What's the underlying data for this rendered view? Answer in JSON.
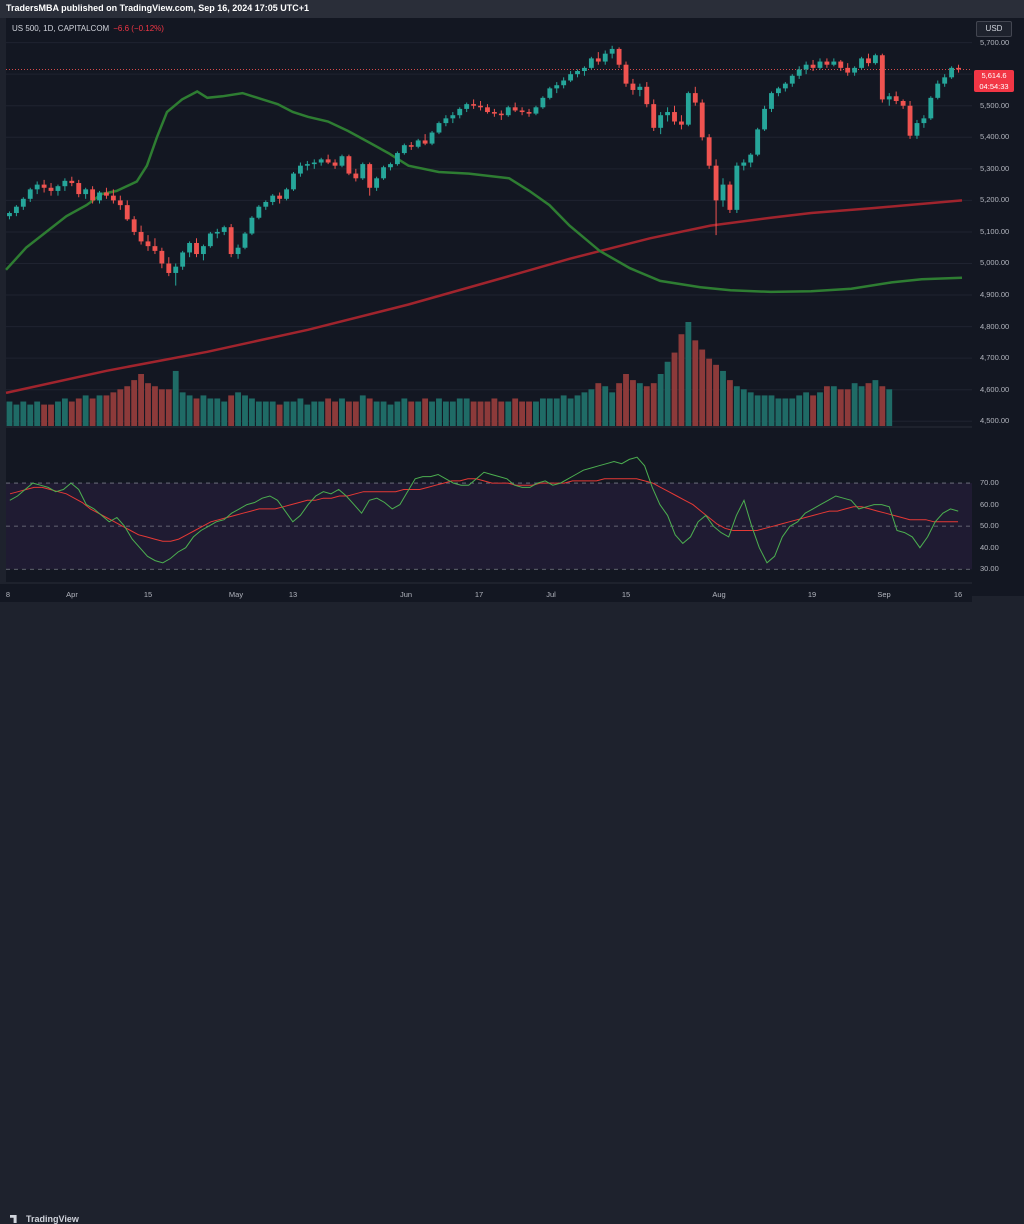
{
  "header": {
    "published": "TradersMBA published on TradingView.com, Sep 16, 2024 17:05 UTC+1"
  },
  "legend": {
    "symbol": "US 500, 1D, CAPITALCOM",
    "change": "−6.6 (−0.12%)"
  },
  "currency": "USD",
  "last_price": {
    "value": "5,614.6",
    "countdown": "04:54:33",
    "color": "#f23645"
  },
  "colors": {
    "up": "#26a69a",
    "down": "#ef5350",
    "volume_up": "#1f6b66",
    "volume_down": "#8c3a3a",
    "ma50": "#2e7d32",
    "ma200": "#a0242d",
    "rsi": "#4caf50",
    "rsi_ma": "#e53935",
    "rsi_band": "#2a1f40"
  },
  "brand": "TradingView",
  "chart_data": {
    "type": "candlestick",
    "price_axis": {
      "ticks": [
        "5,700.00",
        "5,600.00",
        "5,500.00",
        "5,400.00",
        "5,300.00",
        "5,200.00",
        "5,100.00",
        "5,000.00",
        "4,900.00",
        "4,800.00",
        "4,700.00",
        "4,600.00",
        "4,500.00"
      ],
      "range": [
        4485,
        5740
      ]
    },
    "rsi_axis": {
      "ticks": [
        "70.00",
        "60.00",
        "50.00",
        "40.00",
        "30.00"
      ],
      "range": [
        25,
        90
      ],
      "band": [
        30,
        70
      ]
    },
    "time_axis": [
      "8",
      "Apr",
      "15",
      "May",
      "13",
      "Jun",
      "17",
      "Jul",
      "15",
      "Aug",
      "19",
      "Sep",
      "16"
    ],
    "ohlc": [
      [
        5150,
        5165,
        5140,
        5160
      ],
      [
        5160,
        5185,
        5150,
        5180
      ],
      [
        5180,
        5210,
        5170,
        5205
      ],
      [
        5205,
        5240,
        5195,
        5235
      ],
      [
        5235,
        5260,
        5220,
        5250
      ],
      [
        5250,
        5265,
        5225,
        5240
      ],
      [
        5240,
        5255,
        5215,
        5230
      ],
      [
        5230,
        5250,
        5215,
        5245
      ],
      [
        5245,
        5270,
        5230,
        5262
      ],
      [
        5262,
        5275,
        5245,
        5255
      ],
      [
        5255,
        5265,
        5210,
        5220
      ],
      [
        5220,
        5240,
        5205,
        5235
      ],
      [
        5235,
        5245,
        5190,
        5200
      ],
      [
        5200,
        5230,
        5190,
        5225
      ],
      [
        5225,
        5240,
        5205,
        5215
      ],
      [
        5215,
        5235,
        5190,
        5200
      ],
      [
        5200,
        5215,
        5170,
        5185
      ],
      [
        5185,
        5200,
        5135,
        5140
      ],
      [
        5140,
        5150,
        5090,
        5100
      ],
      [
        5100,
        5120,
        5060,
        5070
      ],
      [
        5070,
        5090,
        5040,
        5055
      ],
      [
        5055,
        5080,
        5030,
        5040
      ],
      [
        5040,
        5050,
        4985,
        5000
      ],
      [
        5000,
        5020,
        4960,
        4970
      ],
      [
        4970,
        5000,
        4930,
        4990
      ],
      [
        4990,
        5040,
        4980,
        5035
      ],
      [
        5035,
        5070,
        5020,
        5065
      ],
      [
        5065,
        5080,
        5020,
        5030
      ],
      [
        5030,
        5060,
        5010,
        5055
      ],
      [
        5055,
        5100,
        5050,
        5095
      ],
      [
        5095,
        5110,
        5080,
        5100
      ],
      [
        5100,
        5120,
        5090,
        5115
      ],
      [
        5115,
        5125,
        5020,
        5030
      ],
      [
        5030,
        5060,
        5015,
        5050
      ],
      [
        5050,
        5100,
        5045,
        5095
      ],
      [
        5095,
        5150,
        5090,
        5145
      ],
      [
        5145,
        5185,
        5140,
        5180
      ],
      [
        5180,
        5200,
        5170,
        5195
      ],
      [
        5195,
        5220,
        5185,
        5215
      ],
      [
        5215,
        5225,
        5190,
        5205
      ],
      [
        5205,
        5240,
        5200,
        5235
      ],
      [
        5235,
        5290,
        5230,
        5285
      ],
      [
        5285,
        5320,
        5275,
        5310
      ],
      [
        5310,
        5325,
        5295,
        5315
      ],
      [
        5315,
        5330,
        5300,
        5320
      ],
      [
        5320,
        5335,
        5310,
        5330
      ],
      [
        5330,
        5345,
        5315,
        5320
      ],
      [
        5320,
        5330,
        5300,
        5310
      ],
      [
        5310,
        5345,
        5305,
        5340
      ],
      [
        5340,
        5345,
        5280,
        5285
      ],
      [
        5285,
        5300,
        5260,
        5270
      ],
      [
        5270,
        5320,
        5265,
        5315
      ],
      [
        5315,
        5320,
        5215,
        5240
      ],
      [
        5240,
        5275,
        5230,
        5270
      ],
      [
        5270,
        5310,
        5265,
        5305
      ],
      [
        5305,
        5320,
        5295,
        5315
      ],
      [
        5315,
        5355,
        5310,
        5350
      ],
      [
        5350,
        5380,
        5345,
        5375
      ],
      [
        5375,
        5385,
        5360,
        5370
      ],
      [
        5370,
        5395,
        5365,
        5390
      ],
      [
        5390,
        5410,
        5375,
        5380
      ],
      [
        5380,
        5420,
        5375,
        5415
      ],
      [
        5415,
        5450,
        5410,
        5445
      ],
      [
        5445,
        5470,
        5435,
        5460
      ],
      [
        5460,
        5480,
        5445,
        5470
      ],
      [
        5470,
        5495,
        5460,
        5490
      ],
      [
        5490,
        5510,
        5480,
        5505
      ],
      [
        5505,
        5520,
        5490,
        5500
      ],
      [
        5500,
        5515,
        5485,
        5495
      ],
      [
        5495,
        5505,
        5475,
        5480
      ],
      [
        5480,
        5490,
        5465,
        5475
      ],
      [
        5475,
        5485,
        5455,
        5470
      ],
      [
        5470,
        5500,
        5465,
        5495
      ],
      [
        5495,
        5510,
        5480,
        5485
      ],
      [
        5485,
        5495,
        5470,
        5480
      ],
      [
        5480,
        5490,
        5465,
        5475
      ],
      [
        5475,
        5500,
        5470,
        5495
      ],
      [
        5495,
        5530,
        5490,
        5525
      ],
      [
        5525,
        5560,
        5520,
        5555
      ],
      [
        5555,
        5575,
        5540,
        5565
      ],
      [
        5565,
        5590,
        5555,
        5580
      ],
      [
        5580,
        5610,
        5575,
        5600
      ],
      [
        5600,
        5615,
        5590,
        5610
      ],
      [
        5610,
        5625,
        5595,
        5620
      ],
      [
        5620,
        5655,
        5615,
        5650
      ],
      [
        5650,
        5670,
        5630,
        5640
      ],
      [
        5640,
        5675,
        5630,
        5665
      ],
      [
        5665,
        5690,
        5650,
        5680
      ],
      [
        5680,
        5685,
        5620,
        5630
      ],
      [
        5630,
        5640,
        5560,
        5570
      ],
      [
        5570,
        5585,
        5535,
        5550
      ],
      [
        5550,
        5570,
        5530,
        5560
      ],
      [
        5560,
        5575,
        5495,
        5505
      ],
      [
        5505,
        5520,
        5420,
        5430
      ],
      [
        5430,
        5480,
        5410,
        5470
      ],
      [
        5470,
        5495,
        5450,
        5480
      ],
      [
        5480,
        5500,
        5440,
        5450
      ],
      [
        5450,
        5470,
        5425,
        5440
      ],
      [
        5440,
        5545,
        5435,
        5540
      ],
      [
        5540,
        5560,
        5500,
        5510
      ],
      [
        5510,
        5520,
        5390,
        5400
      ],
      [
        5400,
        5410,
        5300,
        5310
      ],
      [
        5310,
        5330,
        5090,
        5200
      ],
      [
        5200,
        5270,
        5180,
        5250
      ],
      [
        5250,
        5260,
        5160,
        5170
      ],
      [
        5170,
        5320,
        5160,
        5310
      ],
      [
        5310,
        5330,
        5295,
        5320
      ],
      [
        5320,
        5350,
        5305,
        5345
      ],
      [
        5345,
        5430,
        5340,
        5425
      ],
      [
        5425,
        5500,
        5420,
        5490
      ],
      [
        5490,
        5545,
        5480,
        5540
      ],
      [
        5540,
        5560,
        5530,
        5555
      ],
      [
        5555,
        5575,
        5545,
        5570
      ],
      [
        5570,
        5600,
        5560,
        5595
      ],
      [
        5595,
        5625,
        5585,
        5615
      ],
      [
        5615,
        5640,
        5600,
        5630
      ],
      [
        5630,
        5645,
        5610,
        5620
      ],
      [
        5620,
        5650,
        5615,
        5640
      ],
      [
        5640,
        5650,
        5620,
        5630
      ],
      [
        5630,
        5650,
        5625,
        5640
      ],
      [
        5640,
        5645,
        5610,
        5620
      ],
      [
        5620,
        5635,
        5595,
        5605
      ],
      [
        5605,
        5625,
        5595,
        5620
      ],
      [
        5620,
        5655,
        5615,
        5650
      ],
      [
        5650,
        5665,
        5625,
        5635
      ],
      [
        5635,
        5665,
        5630,
        5660
      ],
      [
        5660,
        5665,
        5510,
        5520
      ],
      [
        5520,
        5540,
        5500,
        5530
      ],
      [
        5530,
        5545,
        5505,
        5515
      ],
      [
        5515,
        5520,
        5490,
        5500
      ],
      [
        5500,
        5515,
        5395,
        5405
      ],
      [
        5405,
        5455,
        5395,
        5445
      ],
      [
        5445,
        5470,
        5430,
        5460
      ],
      [
        5460,
        5530,
        5455,
        5525
      ],
      [
        5525,
        5580,
        5520,
        5570
      ],
      [
        5570,
        5600,
        5560,
        5590
      ],
      [
        5590,
        5625,
        5585,
        5620
      ],
      [
        5620,
        5630,
        5605,
        5615
      ]
    ],
    "ma50": [
      [
        0,
        4980
      ],
      [
        20,
        5050
      ],
      [
        40,
        5100
      ],
      [
        60,
        5150
      ],
      [
        80,
        5185
      ],
      [
        95,
        5220
      ],
      [
        110,
        5230
      ],
      [
        130,
        5260
      ],
      [
        140,
        5310
      ],
      [
        150,
        5400
      ],
      [
        160,
        5480
      ],
      [
        175,
        5520
      ],
      [
        190,
        5545
      ],
      [
        200,
        5525
      ],
      [
        215,
        5530
      ],
      [
        235,
        5540
      ],
      [
        255,
        5520
      ],
      [
        270,
        5505
      ],
      [
        285,
        5480
      ],
      [
        300,
        5465
      ],
      [
        320,
        5450
      ],
      [
        340,
        5420
      ],
      [
        360,
        5385
      ],
      [
        380,
        5350
      ],
      [
        400,
        5310
      ],
      [
        430,
        5290
      ],
      [
        460,
        5285
      ],
      [
        500,
        5270
      ],
      [
        520,
        5230
      ],
      [
        540,
        5185
      ],
      [
        560,
        5120
      ],
      [
        590,
        5040
      ],
      [
        620,
        4985
      ],
      [
        650,
        4945
      ],
      [
        690,
        4925
      ],
      [
        720,
        4915
      ],
      [
        760,
        4910
      ],
      [
        800,
        4912
      ],
      [
        840,
        4920
      ],
      [
        880,
        4940
      ],
      [
        910,
        4950
      ],
      [
        950,
        4955
      ]
    ],
    "ma200": [
      [
        0,
        4590
      ],
      [
        100,
        4660
      ],
      [
        200,
        4720
      ],
      [
        300,
        4790
      ],
      [
        400,
        4870
      ],
      [
        500,
        4960
      ],
      [
        560,
        5015
      ],
      [
        640,
        5080
      ],
      [
        700,
        5120
      ],
      [
        760,
        5145
      ],
      [
        800,
        5160
      ],
      [
        860,
        5175
      ],
      [
        950,
        5200
      ]
    ],
    "volume": [
      8,
      7,
      8,
      7,
      8,
      7,
      7,
      8,
      9,
      8,
      9,
      10,
      9,
      10,
      10,
      11,
      12,
      13,
      15,
      17,
      14,
      13,
      12,
      12,
      18,
      11,
      10,
      9,
      10,
      9,
      9,
      8,
      10,
      11,
      10,
      9,
      8,
      8,
      8,
      7,
      8,
      8,
      9,
      7,
      8,
      8,
      9,
      8,
      9,
      8,
      8,
      10,
      9,
      8,
      8,
      7,
      8,
      9,
      8,
      8,
      9,
      8,
      9,
      8,
      8,
      9,
      9,
      8,
      8,
      8,
      9,
      8,
      8,
      9,
      8,
      8,
      8,
      9,
      9,
      9,
      10,
      9,
      10,
      11,
      12,
      14,
      13,
      11,
      14,
      17,
      15,
      14,
      13,
      14,
      17,
      21,
      24,
      30,
      34,
      28,
      25,
      22,
      20,
      18,
      15,
      13,
      12,
      11,
      10,
      10,
      10,
      9,
      9,
      9,
      10,
      11,
      10,
      11,
      13,
      13,
      12,
      12,
      14,
      13,
      14,
      15,
      13,
      12
    ],
    "rsi": [
      62,
      64,
      67,
      70,
      69,
      68,
      66,
      67,
      70,
      67,
      60,
      58,
      55,
      52,
      54,
      50,
      44,
      40,
      36,
      34,
      33,
      35,
      38,
      40,
      45,
      48,
      50,
      52,
      53,
      56,
      58,
      60,
      61,
      63,
      64,
      62,
      57,
      52,
      55,
      60,
      64,
      66,
      65,
      67,
      64,
      60,
      56,
      62,
      63,
      61,
      58,
      60,
      66,
      72,
      73,
      73,
      74,
      72,
      70,
      69,
      69,
      72,
      75,
      74,
      73,
      72,
      69,
      68,
      68,
      70,
      71,
      69,
      70,
      72,
      74,
      76,
      77,
      78,
      79,
      80,
      79,
      81,
      82,
      78,
      68,
      60,
      55,
      46,
      42,
      45,
      52,
      55,
      50,
      47,
      45,
      55,
      62,
      50,
      40,
      33,
      36,
      45,
      50,
      52,
      56,
      58,
      60,
      62,
      64,
      63,
      62,
      58,
      59,
      60,
      60,
      59,
      48,
      47,
      45,
      40,
      45,
      52,
      56,
      58,
      57
    ],
    "rsi_ma": [
      65,
      66,
      67,
      68,
      68,
      67,
      66,
      65,
      63,
      61,
      58,
      56,
      54,
      52,
      50,
      48,
      46,
      45,
      44,
      43,
      43,
      44,
      46,
      48,
      50,
      52,
      53,
      54,
      55,
      56,
      57,
      58,
      58,
      58,
      59,
      60,
      61,
      62,
      62,
      63,
      63,
      64,
      64,
      65,
      66,
      66,
      66,
      66,
      66,
      67,
      67,
      67,
      68,
      69,
      70,
      71,
      71,
      72,
      72,
      71,
      70,
      70,
      70,
      69,
      69,
      69,
      70,
      70,
      70,
      70,
      71,
      71,
      71,
      71,
      72,
      72,
      72,
      72,
      72,
      71,
      70,
      68,
      66,
      64,
      62,
      60,
      57,
      54,
      51,
      49,
      48,
      48,
      48,
      48,
      49,
      50,
      51,
      52,
      53,
      54,
      55,
      56,
      57,
      57,
      58,
      59,
      59,
      58,
      57,
      56,
      55,
      54,
      53,
      53,
      53,
      52,
      52,
      52,
      52
    ]
  }
}
